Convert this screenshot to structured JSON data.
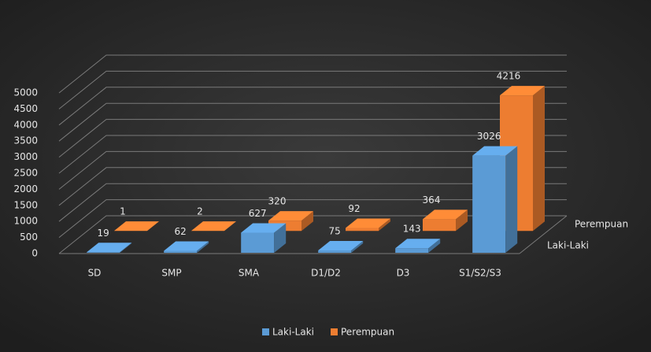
{
  "chart_data": {
    "type": "bar3d",
    "categories": [
      "SD",
      "SMP",
      "SMA",
      "D1/D2",
      "D3",
      "S1/S2/S3"
    ],
    "series": [
      {
        "name": "Laki-Laki",
        "color": "#5b9bd5",
        "values": [
          19,
          62,
          627,
          75,
          143,
          3026
        ]
      },
      {
        "name": "Perempuan",
        "color": "#ed7d31",
        "values": [
          1,
          2,
          320,
          92,
          364,
          4216
        ]
      }
    ],
    "ylim": [
      0,
      5000
    ],
    "yticks": [
      0,
      500,
      1000,
      1500,
      2000,
      2500,
      3000,
      3500,
      4000,
      4500,
      5000
    ],
    "grid": true,
    "legend": "bottom"
  }
}
